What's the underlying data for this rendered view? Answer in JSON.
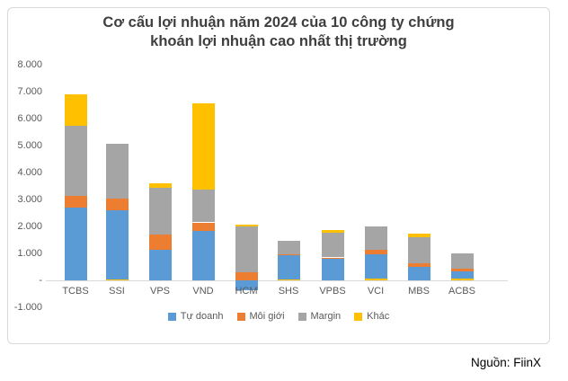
{
  "chart_data": {
    "type": "bar",
    "stacked": true,
    "title": "Cơ cấu lợi nhuận năm 2024 của 10 công ty chứng khoán lợi nhuận cao nhất thị trường",
    "title_lines": [
      "Cơ cấu lợi nhuận năm 2024 của 10 công ty chứng",
      "khoán lợi nhuận cao nhất thị trường"
    ],
    "xlabel": "",
    "ylabel": "",
    "ylim": [
      -1000,
      8000
    ],
    "grid": false,
    "legend_position": "bottom",
    "y_axis_ticks": [
      {
        "value": 8000,
        "label": "8.000"
      },
      {
        "value": 7000,
        "label": "7.000"
      },
      {
        "value": 6000,
        "label": "6.000"
      },
      {
        "value": 5000,
        "label": "5.000"
      },
      {
        "value": 4000,
        "label": "4.000"
      },
      {
        "value": 3000,
        "label": "3.000"
      },
      {
        "value": 2000,
        "label": "2.000"
      },
      {
        "value": 1000,
        "label": "1.000"
      },
      {
        "value": 0,
        "label": "-"
      },
      {
        "value": -1000,
        "label": "-1.000"
      }
    ],
    "series": [
      {
        "name": "Tự doanh",
        "color": "#5B9BD5"
      },
      {
        "name": "Môi giới",
        "color": "#ED7D31"
      },
      {
        "name": "Margin",
        "color": "#A5A5A5"
      },
      {
        "name": "Khác",
        "color": "#FFC000"
      }
    ],
    "categories": [
      "TCBS",
      "SSI",
      "VPS",
      "VND",
      "HCM",
      "SHS",
      "VPBS",
      "VCI",
      "MBS",
      "ACBS"
    ],
    "bars": [
      {
        "label": "TCBS",
        "segments": [
          {
            "series": "Tự doanh",
            "value": 2700
          },
          {
            "series": "Môi giới",
            "value": 450
          },
          {
            "series": "Margin",
            "value": 2600
          },
          {
            "series": "Khác",
            "value": 1150
          }
        ]
      },
      {
        "label": "SSI",
        "segments": [
          {
            "series": "Khác",
            "value": 50
          },
          {
            "series": "Tự doanh",
            "value": 2550
          },
          {
            "series": "Môi giới",
            "value": 430
          },
          {
            "series": "Margin",
            "value": 2040
          }
        ]
      },
      {
        "label": "VPS",
        "segments": [
          {
            "series": "Tự doanh",
            "value": 1130
          },
          {
            "series": "Môi giới",
            "value": 570
          },
          {
            "series": "Margin",
            "value": 1730
          },
          {
            "series": "Khác",
            "value": 170
          }
        ]
      },
      {
        "label": "VND",
        "segments": [
          {
            "series": "Tự doanh",
            "value": 1850
          },
          {
            "series": "Môi giới",
            "value": 300
          },
          {
            "series": "Margin",
            "value": 1230
          },
          {
            "series": "Khác",
            "value": 3200
          }
        ]
      },
      {
        "label": "HCM",
        "segments": [
          {
            "series": "Tự doanh",
            "value": -370
          },
          {
            "series": "Môi giới",
            "value": 300
          },
          {
            "series": "Margin",
            "value": 1700
          },
          {
            "series": "Khác",
            "value": 80
          }
        ]
      },
      {
        "label": "SHS",
        "segments": [
          {
            "series": "Khác",
            "value": 40
          },
          {
            "series": "Tự doanh",
            "value": 900
          },
          {
            "series": "Môi giới",
            "value": 30
          },
          {
            "series": "Margin",
            "value": 510
          }
        ]
      },
      {
        "label": "VPBS",
        "segments": [
          {
            "series": "Tự doanh",
            "value": 830
          },
          {
            "series": "Môi giới",
            "value": 20
          },
          {
            "series": "Margin",
            "value": 910
          },
          {
            "series": "Khác",
            "value": 110
          }
        ]
      },
      {
        "label": "VCI",
        "segments": [
          {
            "series": "Khác",
            "value": 60
          },
          {
            "series": "Tự doanh",
            "value": 900
          },
          {
            "series": "Môi giới",
            "value": 170
          },
          {
            "series": "Margin",
            "value": 870
          }
        ]
      },
      {
        "label": "MBS",
        "segments": [
          {
            "series": "Tự doanh",
            "value": 510
          },
          {
            "series": "Môi giới",
            "value": 130
          },
          {
            "series": "Margin",
            "value": 950
          },
          {
            "series": "Khác",
            "value": 130
          }
        ]
      },
      {
        "label": "ACBS",
        "segments": [
          {
            "series": "Khác",
            "value": 80
          },
          {
            "series": "Tự doanh",
            "value": 270
          },
          {
            "series": "Môi giới",
            "value": 100
          },
          {
            "series": "Margin",
            "value": 550
          }
        ]
      }
    ]
  },
  "source_note": "Nguồn: FiinX",
  "colors": {
    "axis_text": "#595959",
    "axis_line": "#D9D9D9",
    "card_border": "#D9D9D9",
    "title_text": "#3F3F3F"
  }
}
